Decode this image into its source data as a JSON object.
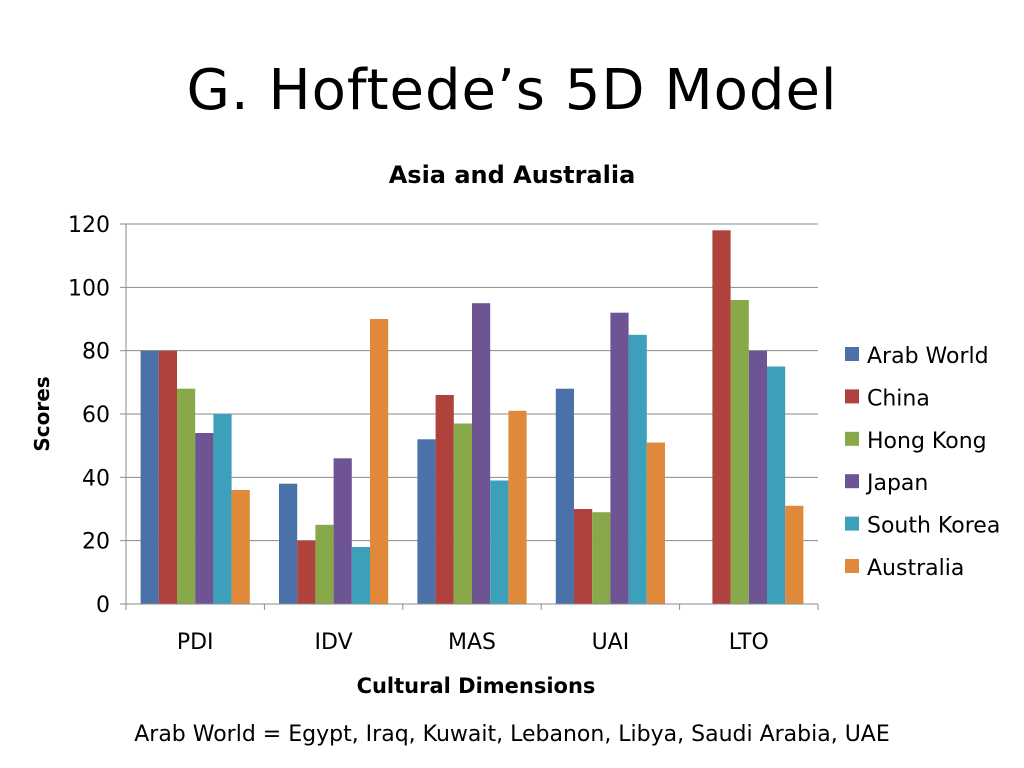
{
  "slide": {
    "title": "G. Hoftede’s 5D Model",
    "footnote": "Arab World = Egypt, Iraq, Kuwait, Lebanon, Libya, Saudi Arabia, UAE"
  },
  "chart_data": {
    "type": "bar",
    "title": "Asia and Australia",
    "xlabel": "Cultural Dimensions",
    "ylabel": "Scores",
    "ylim": [
      0,
      120
    ],
    "yticks": [
      0,
      20,
      40,
      60,
      80,
      100,
      120
    ],
    "grid": true,
    "legend_position": "right",
    "categories": [
      "PDI",
      "IDV",
      "MAS",
      "UAI",
      "LTO"
    ],
    "series": [
      {
        "name": "Arab World",
        "color": "#4A72A8",
        "values": [
          80,
          38,
          52,
          68,
          null
        ]
      },
      {
        "name": "China",
        "color": "#B0423D",
        "values": [
          80,
          20,
          66,
          30,
          118
        ]
      },
      {
        "name": "Hong Kong",
        "color": "#88A94A",
        "values": [
          68,
          25,
          57,
          29,
          96
        ]
      },
      {
        "name": "Japan",
        "color": "#6F5493",
        "values": [
          54,
          46,
          95,
          92,
          80
        ]
      },
      {
        "name": "South Korea",
        "color": "#3DA0BA",
        "values": [
          60,
          18,
          39,
          85,
          75
        ]
      },
      {
        "name": "Australia",
        "color": "#E0893B",
        "values": [
          36,
          90,
          61,
          51,
          31
        ]
      }
    ]
  }
}
